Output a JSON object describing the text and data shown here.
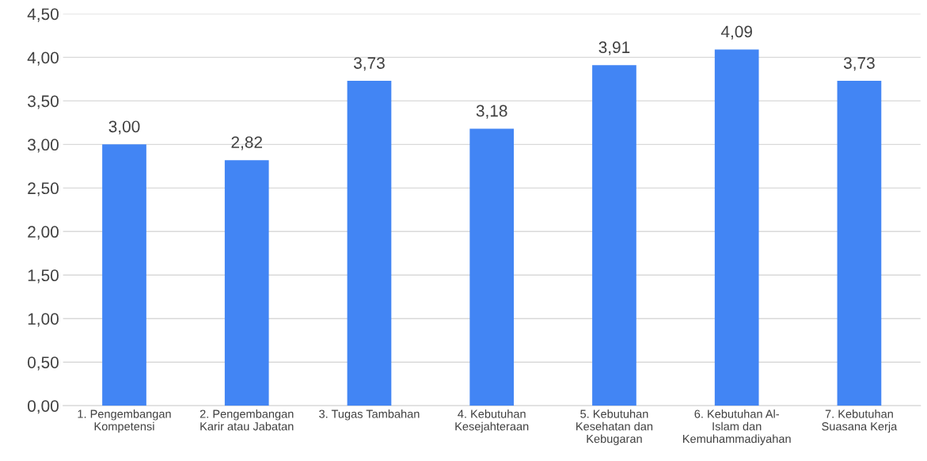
{
  "chart_data": {
    "type": "bar",
    "categories": [
      "1. Pengembangan\nKompetensi",
      "2. Pengembangan\nKarir atau Jabatan",
      "3. Tugas Tambahan",
      "4. Kebutuhan\nKesejahteraan",
      "5. Kebutuhan\nKesehatan dan\nKebugaran",
      "6. Kebutuhan Al-\nIslam dan\nKemuhammadiyahan",
      "7. Kebutuhan\nSuasana Kerja"
    ],
    "values": [
      3.0,
      2.82,
      3.73,
      3.18,
      3.91,
      4.09,
      3.73
    ],
    "value_labels": [
      "3,00",
      "2,82",
      "3,73",
      "3,18",
      "3,91",
      "4,09",
      "3,73"
    ],
    "color": "#4285f4",
    "ylim": [
      0,
      4.5
    ],
    "yticks": [
      {
        "value": 0,
        "label": "0,00"
      },
      {
        "value": 0.5,
        "label": "0,50"
      },
      {
        "value": 1,
        "label": "1,00"
      },
      {
        "value": 1.5,
        "label": "1,50"
      },
      {
        "value": 2,
        "label": "2,00"
      },
      {
        "value": 2.5,
        "label": "2,50"
      },
      {
        "value": 3,
        "label": "3,00"
      },
      {
        "value": 3.5,
        "label": "3,50"
      },
      {
        "value": 4,
        "label": "4,00"
      },
      {
        "value": 4.5,
        "label": "4,50"
      }
    ],
    "grid": "y"
  }
}
